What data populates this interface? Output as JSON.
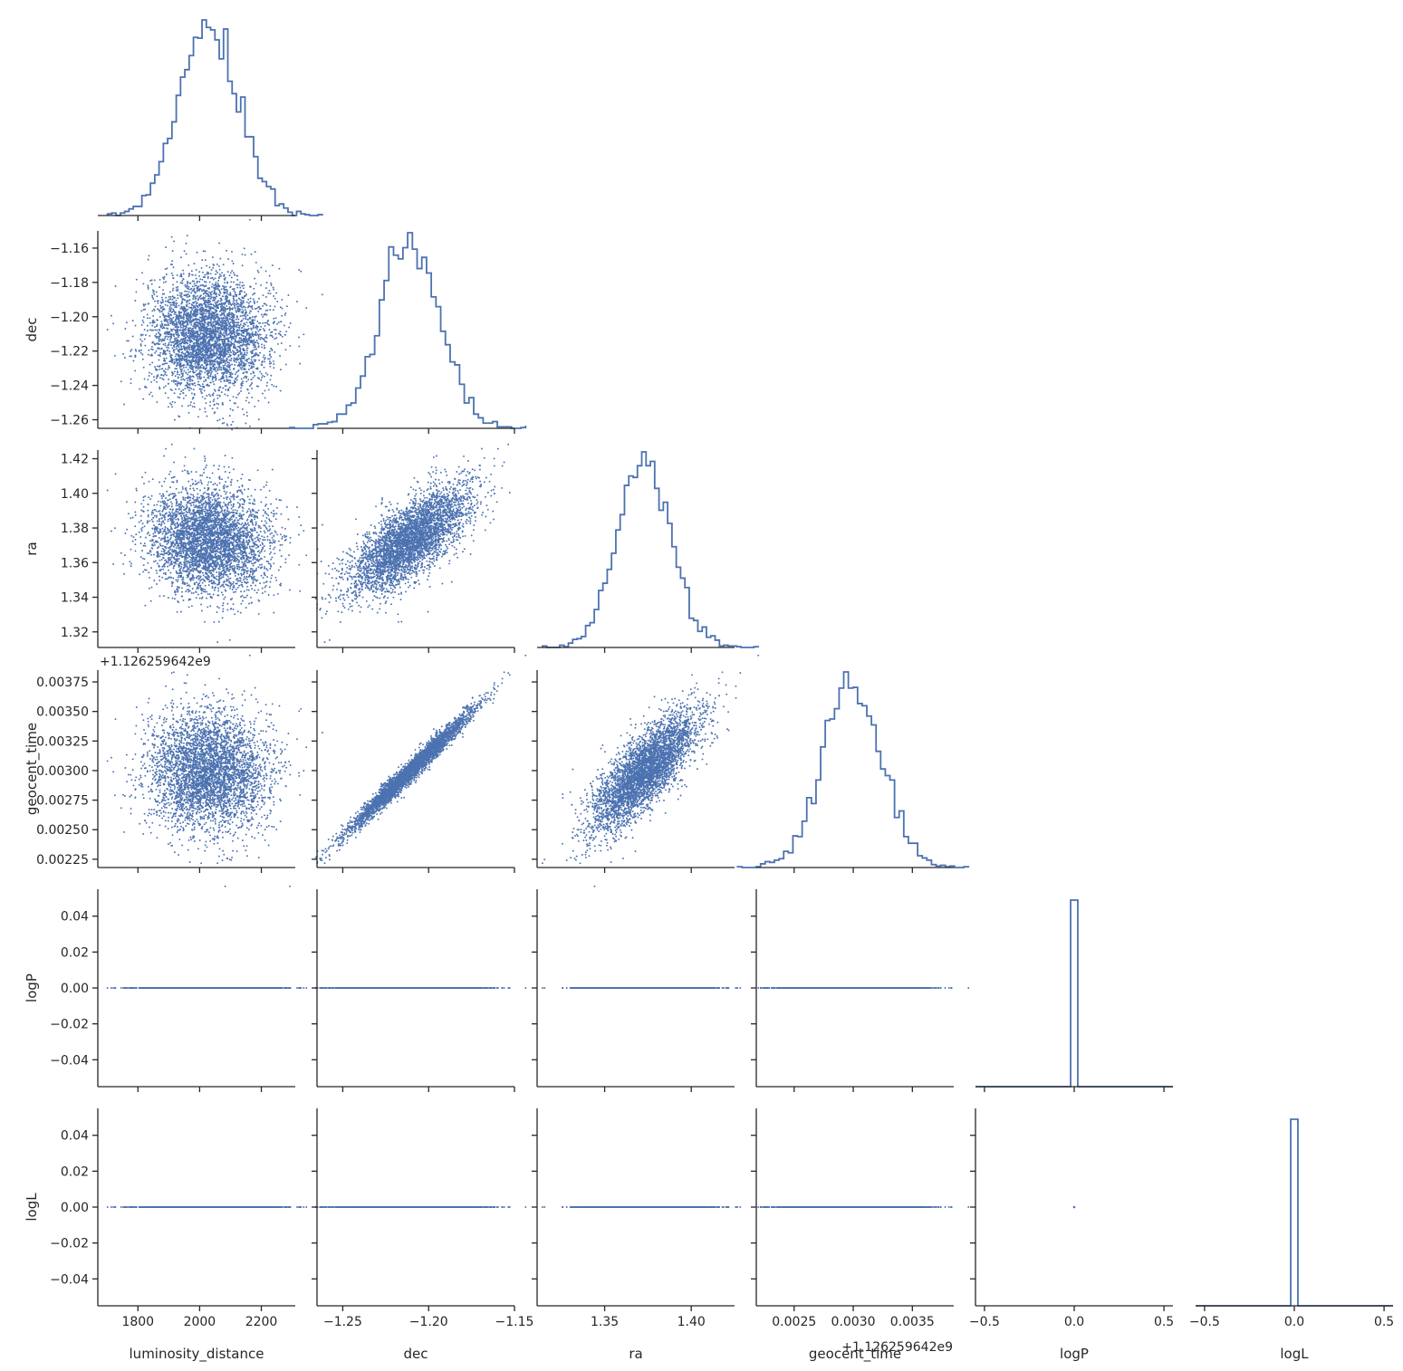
{
  "chart_data": {
    "type": "pairplot",
    "variables": [
      {
        "name": "luminosity_distance",
        "label": "luminosity_distance",
        "range": [
          1670,
          2310
        ],
        "ticks": [
          1800,
          2000,
          2200
        ],
        "tick_labels": [
          "1800",
          "2000",
          "2200"
        ],
        "mean": 2030,
        "sd": 95,
        "offset": ""
      },
      {
        "name": "dec",
        "label": "dec",
        "range": [
          -1.265,
          -1.15
        ],
        "ticks": [
          -1.26,
          -1.24,
          -1.22,
          -1.2,
          -1.18,
          -1.16
        ],
        "tick_labels": [
          "−1.26",
          "−1.24",
          "−1.22",
          "−1.20",
          "−1.18",
          "−1.16"
        ],
        "x_ticks": [
          -1.25,
          -1.2,
          -1.15
        ],
        "x_tick_labels": [
          "−1.25",
          "−1.20",
          "−1.15"
        ],
        "mean": -1.211,
        "sd": 0.0175,
        "offset": ""
      },
      {
        "name": "ra",
        "label": "ra",
        "range": [
          1.311,
          1.425
        ],
        "ticks": [
          1.32,
          1.34,
          1.36,
          1.38,
          1.4,
          1.42
        ],
        "tick_labels": [
          "1.32",
          "1.34",
          "1.36",
          "1.38",
          "1.40",
          "1.42"
        ],
        "x_ticks": [
          1.35,
          1.4
        ],
        "x_tick_labels": [
          "1.35",
          "1.40"
        ],
        "mean": 1.373,
        "sd": 0.0155,
        "offset": ""
      },
      {
        "name": "geocent_time",
        "label": "geocent_time",
        "range": [
          0.00218,
          0.00385
        ],
        "ticks": [
          0.00225,
          0.0025,
          0.00275,
          0.003,
          0.00325,
          0.0035,
          0.00375
        ],
        "tick_labels": [
          "0.00225",
          "0.00250",
          "0.00275",
          "0.00300",
          "0.00325",
          "0.00350",
          "0.00375"
        ],
        "x_ticks": [
          0.0025,
          0.003,
          0.0035
        ],
        "x_tick_labels": [
          "0.0025",
          "0.0030",
          "0.0035"
        ],
        "mean": 0.00299,
        "sd": 0.00025,
        "offset": "+1.126259642e9"
      },
      {
        "name": "logP",
        "label": "logP",
        "range": [
          -0.055,
          0.055
        ],
        "ticks": [
          -0.04,
          -0.02,
          0.0,
          0.02,
          0.04
        ],
        "tick_labels": [
          "−0.04",
          "−0.02",
          "0.00",
          "0.02",
          "0.04"
        ],
        "x_range": [
          -0.55,
          0.55
        ],
        "x_ticks": [
          -0.5,
          0.0,
          0.5
        ],
        "x_tick_labels": [
          "−0.5",
          "0.0",
          "0.5"
        ],
        "constant": 0.0
      },
      {
        "name": "logL",
        "label": "logL",
        "range": [
          -0.055,
          0.055
        ],
        "ticks": [
          -0.04,
          -0.02,
          0.0,
          0.02,
          0.04
        ],
        "tick_labels": [
          "−0.04",
          "−0.02",
          "0.00",
          "0.02",
          "0.04"
        ],
        "x_range": [
          -0.55,
          0.55
        ],
        "x_ticks": [
          -0.5,
          0.0,
          0.5
        ],
        "x_tick_labels": [
          "−0.5",
          "0.0",
          "0.5"
        ],
        "constant": 0.0
      }
    ],
    "correlations": {
      "dec_ra": 0.72,
      "dec_geocent_time": 0.985,
      "ra_geocent_time": 0.7,
      "luminosity_distance_dec": 0.0,
      "luminosity_distance_ra": -0.15,
      "luminosity_distance_geocent_time": -0.1
    },
    "n_samples": 4000,
    "layout": "lower-triangle with histograms on diagonal",
    "histogram_style": "step",
    "color": "#4c72b0",
    "axis_color": "#262626"
  }
}
